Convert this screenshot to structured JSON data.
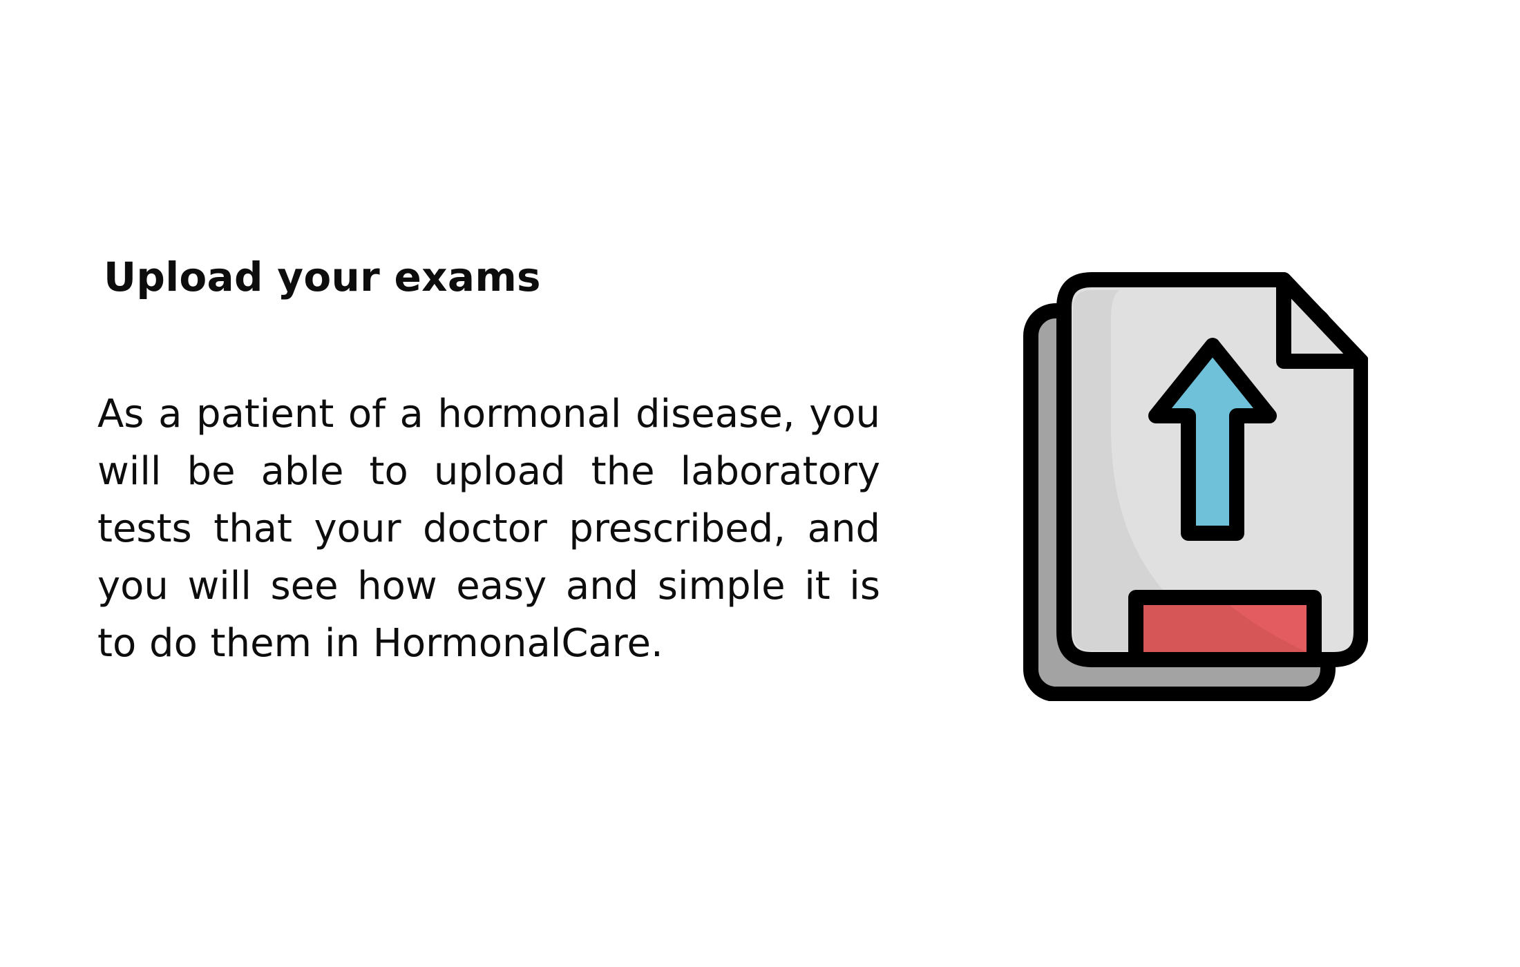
{
  "slide": {
    "title": "Upload your exams",
    "body": "As a patient of a hormonal disease, you will be able to upload the laboratory tests that your doctor prescribed, and you will see how easy and simple it is to do them in HormonalCare."
  },
  "illustration": {
    "icon": "upload-document-icon",
    "colors": {
      "outline": "#000000",
      "back_page": "#a3a3a3",
      "front_page": "#e0e0e0",
      "page_shade": "#d4d4d4",
      "arrow": "#6ec1d8",
      "bar": "#e25c60",
      "bar_shade": "#d65658"
    }
  }
}
